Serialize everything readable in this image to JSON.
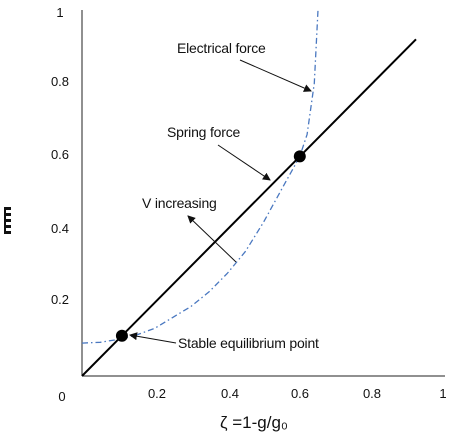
{
  "chart_data": {
    "type": "line",
    "title": "",
    "xlabel": "ζ =1-g/g₀",
    "ylabel": "",
    "xlim": [
      0,
      1
    ],
    "ylim": [
      0,
      1
    ],
    "x_ticks": [
      "0",
      "0.2",
      "0.4",
      "0.6",
      "0.8",
      "1"
    ],
    "y_ticks": [
      "0.2",
      "0.4",
      "0.6",
      "0.8",
      "1"
    ],
    "grid": false,
    "series": [
      {
        "name": "Spring force",
        "style": "solid",
        "color": "#000000",
        "x": [
          0,
          0.92
        ],
        "y": [
          0,
          0.92
        ]
      },
      {
        "name": "Electrical force",
        "style": "dash-dot",
        "color": "#4a78c0",
        "x": [
          0.0,
          0.05,
          0.1,
          0.15,
          0.2,
          0.25,
          0.3,
          0.35,
          0.4,
          0.45,
          0.5,
          0.55,
          0.6,
          0.62,
          0.64,
          0.65
        ],
        "y": [
          0.09,
          0.092,
          0.1,
          0.112,
          0.13,
          0.16,
          0.19,
          0.23,
          0.28,
          0.34,
          0.42,
          0.51,
          0.6,
          0.66,
          0.8,
          1.0
        ]
      }
    ],
    "points": [
      {
        "label": "Stable equilibrium point",
        "x": 0.11,
        "y": 0.11
      },
      {
        "label": "",
        "x": 0.6,
        "y": 0.6
      }
    ],
    "annotations": [
      {
        "text": "Electrical force"
      },
      {
        "text": "Spring force"
      },
      {
        "text": "V increasing"
      },
      {
        "text": "Stable equilibrium point"
      }
    ]
  }
}
